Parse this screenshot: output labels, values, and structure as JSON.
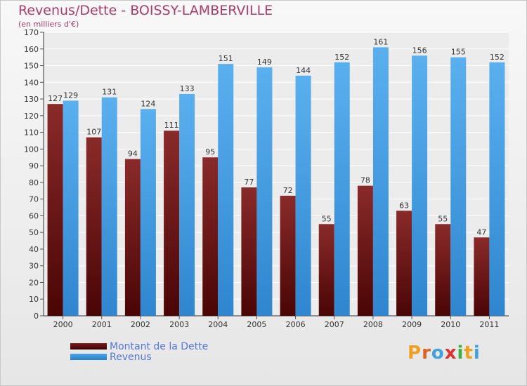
{
  "title": "Revenus/Dette - BOISSY-LAMBERVILLE",
  "subtitle": "(en milliers d'€)",
  "brand": {
    "text": "Proxiti",
    "letters": [
      "P",
      "r",
      "o",
      "x",
      "i",
      "t",
      "i"
    ],
    "colors": [
      "#f0a020",
      "#e06020",
      "#40a0e0",
      "#e03030",
      "#40b040",
      "#f0a020",
      "#40a0e0"
    ]
  },
  "legend": [
    {
      "label": "Montant de la Dette",
      "color": "#7a1a1a"
    },
    {
      "label": "Revenus",
      "color": "#4aa3e8"
    }
  ],
  "chart_data": {
    "type": "bar",
    "categories": [
      "2000",
      "2001",
      "2002",
      "2003",
      "2004",
      "2005",
      "2006",
      "2007",
      "2008",
      "2009",
      "2010",
      "2011"
    ],
    "series": [
      {
        "name": "Montant de la Dette",
        "values": [
          127,
          107,
          94,
          111,
          95,
          77,
          72,
          55,
          78,
          63,
          55,
          47
        ],
        "color": "#7a1a1a"
      },
      {
        "name": "Revenus",
        "values": [
          129,
          131,
          124,
          133,
          151,
          149,
          144,
          152,
          161,
          156,
          155,
          152
        ],
        "color": "#4aa3e8"
      }
    ],
    "ylim": [
      0,
      170
    ],
    "yticks": [
      0,
      10,
      20,
      30,
      40,
      50,
      60,
      70,
      80,
      90,
      100,
      110,
      120,
      130,
      140,
      150,
      160,
      170
    ],
    "grid": true
  }
}
